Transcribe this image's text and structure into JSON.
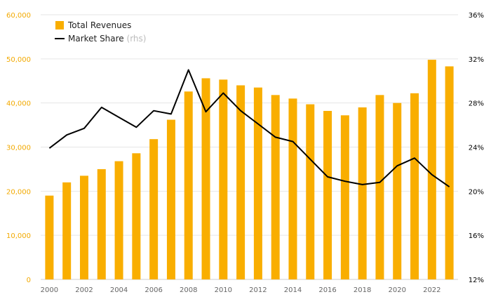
{
  "chart_data": {
    "type": "bar+line",
    "x": [
      2000,
      2001,
      2002,
      2003,
      2004,
      2005,
      2006,
      2007,
      2008,
      2009,
      2010,
      2011,
      2012,
      2013,
      2014,
      2015,
      2016,
      2017,
      2018,
      2019,
      2020,
      2021,
      2022,
      2023
    ],
    "x_tick_labels": [
      "2000",
      "2002",
      "2004",
      "2006",
      "2008",
      "2010",
      "2012",
      "2014",
      "2016",
      "2018",
      "2020",
      "2022"
    ],
    "series": [
      {
        "name": "Total Revenues",
        "type": "bar",
        "axis": "left",
        "color": "#f9ae00",
        "values": [
          19000,
          22000,
          23500,
          25000,
          26800,
          28600,
          31800,
          36200,
          42600,
          45600,
          45300,
          44000,
          43500,
          41800,
          41000,
          39700,
          38200,
          37200,
          39000,
          41800,
          40000,
          42200,
          49800,
          48300
        ]
      },
      {
        "name": "Market Share",
        "note": "(rhs)",
        "type": "line",
        "axis": "right",
        "color": "#000000",
        "values": [
          23.9,
          25.1,
          25.7,
          27.6,
          26.7,
          25.8,
          27.3,
          27.0,
          31.0,
          27.2,
          28.9,
          27.3,
          26.1,
          24.9,
          24.5,
          22.9,
          21.3,
          20.9,
          20.6,
          20.8,
          22.3,
          23.0,
          21.5,
          20.4
        ]
      }
    ],
    "y_left": {
      "min": 0,
      "max": 60000,
      "ticks": [
        0,
        10000,
        20000,
        30000,
        40000,
        50000,
        60000
      ],
      "tick_labels": [
        "0",
        "10,000",
        "20,000",
        "30,000",
        "40,000",
        "50,000",
        "60,000"
      ],
      "color": "#f2a900"
    },
    "y_right": {
      "min": 12,
      "max": 36,
      "ticks": [
        12,
        16,
        20,
        24,
        28,
        32,
        36
      ],
      "tick_labels": [
        "12%",
        "16%",
        "20%",
        "24%",
        "28%",
        "32%",
        "36%"
      ],
      "color": "#000000"
    },
    "grid": true,
    "legend_position": "top-left",
    "title": "",
    "xlabel": "",
    "ylabel": ""
  }
}
